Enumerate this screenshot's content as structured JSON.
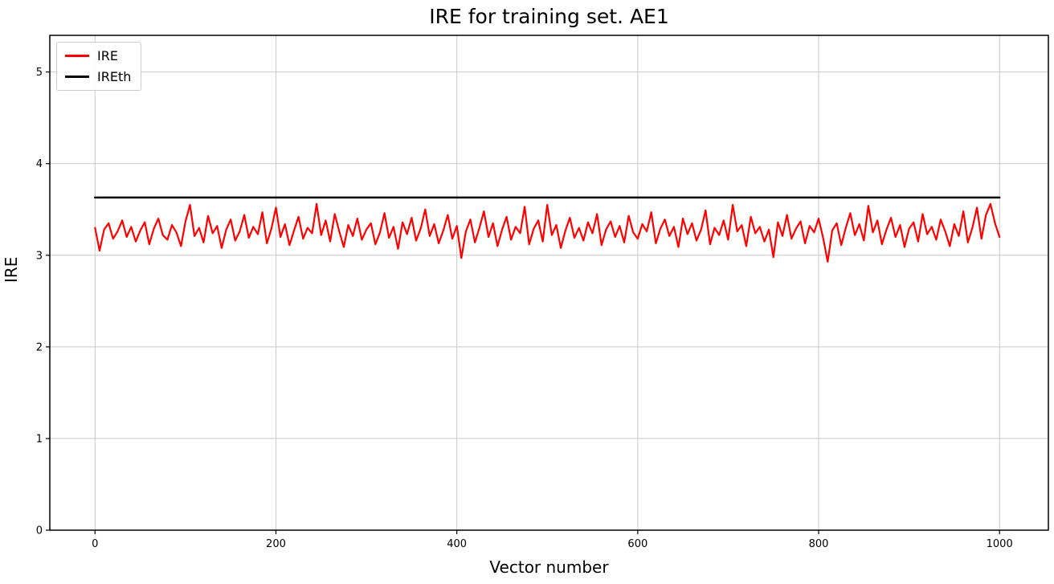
{
  "figure": {
    "background": "#ffffff"
  },
  "chart_data": {
    "type": "line",
    "title": "IRE for training set. AE1",
    "xlabel": "Vector number",
    "ylabel": "IRE",
    "xlim": [
      -50,
      1054
    ],
    "ylim": [
      0,
      5.4
    ],
    "xticks": [
      0,
      200,
      400,
      600,
      800,
      1000
    ],
    "yticks": [
      0,
      1,
      2,
      3,
      4,
      5
    ],
    "grid": true,
    "grid_color": "#c9c9c9",
    "frame_color": "#000000",
    "legend": {
      "position": "upper-left",
      "entries": [
        "IRE",
        "IREth"
      ]
    },
    "series": [
      {
        "name": "IRE",
        "color": "#ff0000",
        "width": 2.2,
        "kind": "noisy-line",
        "x_start": 0,
        "x_step": 5,
        "values": [
          3.3,
          3.05,
          3.28,
          3.35,
          3.18,
          3.26,
          3.38,
          3.2,
          3.31,
          3.15,
          3.27,
          3.36,
          3.12,
          3.29,
          3.4,
          3.22,
          3.17,
          3.33,
          3.25,
          3.1,
          3.37,
          3.55,
          3.21,
          3.3,
          3.14,
          3.43,
          3.24,
          3.32,
          3.08,
          3.28,
          3.39,
          3.16,
          3.26,
          3.44,
          3.19,
          3.31,
          3.23,
          3.47,
          3.13,
          3.29,
          3.52,
          3.2,
          3.34,
          3.11,
          3.27,
          3.42,
          3.18,
          3.3,
          3.24,
          3.56,
          3.22,
          3.38,
          3.15,
          3.45,
          3.26,
          3.09,
          3.33,
          3.21,
          3.4,
          3.17,
          3.28,
          3.35,
          3.12,
          3.25,
          3.46,
          3.19,
          3.31,
          3.07,
          3.36,
          3.23,
          3.41,
          3.16,
          3.29,
          3.5,
          3.21,
          3.34,
          3.13,
          3.27,
          3.44,
          3.18,
          3.32,
          2.97,
          3.26,
          3.39,
          3.14,
          3.3,
          3.48,
          3.2,
          3.35,
          3.1,
          3.28,
          3.42,
          3.17,
          3.31,
          3.24,
          3.53,
          3.12,
          3.29,
          3.38,
          3.15,
          3.55,
          3.22,
          3.33,
          3.08,
          3.27,
          3.41,
          3.19,
          3.3,
          3.16,
          3.36,
          3.24,
          3.45,
          3.11,
          3.28,
          3.37,
          3.2,
          3.32,
          3.14,
          3.43,
          3.25,
          3.18,
          3.34,
          3.26,
          3.47,
          3.13,
          3.29,
          3.39,
          3.21,
          3.31,
          3.09,
          3.4,
          3.23,
          3.35,
          3.16,
          3.28,
          3.49,
          3.12,
          3.3,
          3.22,
          3.38,
          3.17,
          3.55,
          3.26,
          3.33,
          3.1,
          3.42,
          3.24,
          3.31,
          3.15,
          3.28,
          2.98,
          3.36,
          3.21,
          3.44,
          3.18,
          3.29,
          3.37,
          3.13,
          3.32,
          3.25,
          3.4,
          3.19,
          2.93,
          3.27,
          3.35,
          3.11,
          3.3,
          3.46,
          3.22,
          3.34,
          3.16,
          3.54,
          3.25,
          3.38,
          3.12,
          3.28,
          3.41,
          3.2,
          3.33,
          3.09,
          3.29,
          3.36,
          3.15,
          3.45,
          3.23,
          3.31,
          3.17,
          3.39,
          3.26,
          3.1,
          3.34,
          3.21,
          3.48,
          3.14,
          3.3,
          3.52,
          3.18,
          3.44,
          3.56,
          3.35,
          3.2
        ]
      },
      {
        "name": "IREth",
        "color": "#000000",
        "width": 2.5,
        "kind": "hline",
        "value": 3.63,
        "x_range": [
          0,
          1000
        ]
      }
    ]
  }
}
